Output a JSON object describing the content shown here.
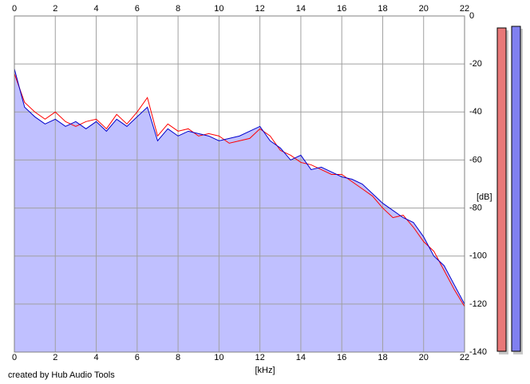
{
  "chart_data": {
    "type": "line",
    "x_label": "[kHz]",
    "y_label": "[dB]",
    "credit": "created by Hub Audio Tools",
    "x": [
      0,
      0.5,
      1,
      1.5,
      2,
      2.5,
      3,
      3.5,
      4,
      4.5,
      5,
      5.5,
      6,
      6.5,
      7,
      7.5,
      8,
      8.5,
      9,
      9.5,
      10,
      10.5,
      11,
      11.5,
      12,
      12.5,
      13,
      13.5,
      14,
      14.5,
      15,
      15.5,
      16,
      16.5,
      17,
      17.5,
      18,
      18.5,
      19,
      19.5,
      20,
      20.5,
      21,
      21.5,
      22
    ],
    "series": [
      {
        "color": "#ff0000",
        "values": [
          -24,
          -36,
          -40,
          -43,
          -40,
          -44,
          -46,
          -44,
          -43,
          -47,
          -41,
          -45,
          -40,
          -34,
          -50,
          -45,
          -48,
          -47,
          -50,
          -49,
          -50,
          -53,
          -52,
          -51,
          -47,
          -50,
          -56,
          -58,
          -61,
          -62,
          -64,
          -66,
          -66,
          -69,
          -72,
          -75,
          -80,
          -84,
          -83,
          -88,
          -94,
          -98,
          -106,
          -114,
          -121
        ]
      },
      {
        "color": "#0000cc",
        "fill": "#c0c0ff",
        "values": [
          -22,
          -38,
          -42,
          -45,
          -43,
          -46,
          -44,
          -47,
          -44,
          -48,
          -43,
          -46,
          -42,
          -38,
          -52,
          -47,
          -50,
          -48,
          -49,
          -50,
          -52,
          -51,
          -50,
          -48,
          -46,
          -52,
          -55,
          -60,
          -58,
          -64,
          -63,
          -65,
          -67,
          -68,
          -70,
          -74,
          -78,
          -81,
          -84,
          -86,
          -92,
          -100,
          -104,
          -112,
          -120
        ]
      }
    ],
    "xlim": [
      0,
      22
    ],
    "xticks": [
      0,
      2,
      4,
      6,
      8,
      10,
      12,
      14,
      16,
      18,
      20,
      22
    ],
    "ylim": [
      -140,
      0
    ],
    "yticks": [
      0,
      -20,
      -40,
      -60,
      -80,
      -100,
      -120,
      -140
    ],
    "grid": true
  }
}
